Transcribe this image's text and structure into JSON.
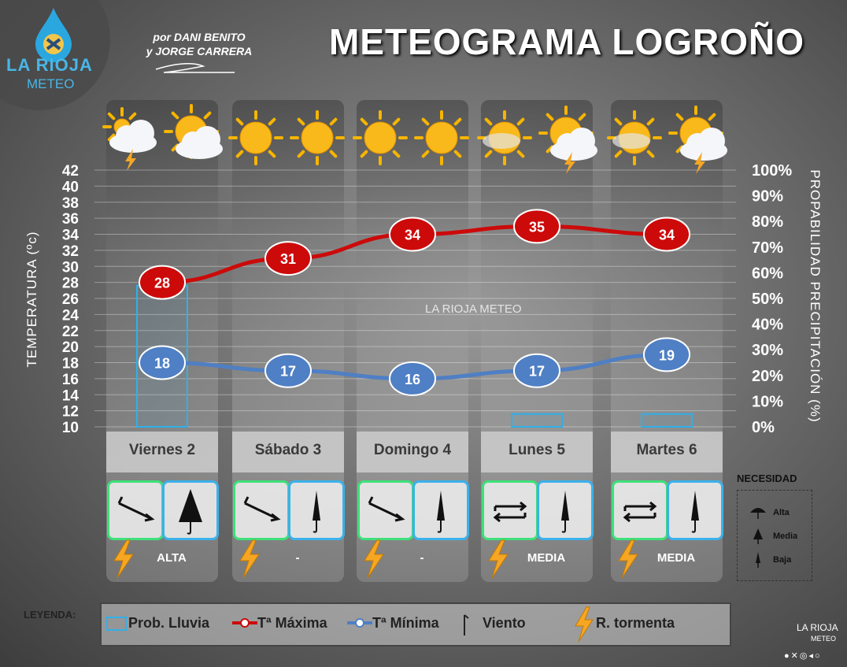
{
  "header": {
    "logo_text": "LA RIOJA",
    "logo_sub": "METEO",
    "authors_line1": "por DANI BENITO",
    "authors_line2": "y JORGE CARRERA",
    "title": "METEOGRAMA LOGROÑO"
  },
  "watermark": "LA RIOJA METEO",
  "chart_data": {
    "type": "line",
    "title": "METEOGRAMA LOGROÑO",
    "categories": [
      "Viernes 2",
      "Sábado 3",
      "Domingo 4",
      "Lunes 5",
      "Martes 6"
    ],
    "ylabel": "TEMPERATURA (ºc)",
    "ylim": [
      10,
      42
    ],
    "yticks": [
      10,
      12,
      14,
      16,
      18,
      20,
      22,
      24,
      26,
      28,
      30,
      32,
      34,
      36,
      38,
      40,
      42
    ],
    "y2label": "PROPABILIDAD PRECIPITACIÓN (%)",
    "y2lim": [
      0,
      100
    ],
    "y2ticks": [
      "0%",
      "10%",
      "20%",
      "30%",
      "40%",
      "50%",
      "60%",
      "70%",
      "80%",
      "90%",
      "100%"
    ],
    "series": [
      {
        "name": "Tª Máxima",
        "values": [
          28,
          31,
          34,
          35,
          34
        ],
        "color": "#cc0a0a"
      },
      {
        "name": "Tª Mínima",
        "values": [
          18,
          17,
          16,
          17,
          19
        ],
        "color": "#4f7fc4"
      },
      {
        "name": "Prob. Lluvia",
        "type": "bar",
        "values": [
          55,
          0,
          0,
          5,
          5
        ],
        "color": "#2fb0ea"
      }
    ],
    "weather_icons": [
      [
        "cloud-sun-storm-icon",
        "sun-cloud-icon"
      ],
      [
        "sun-icon",
        "sun-icon"
      ],
      [
        "sun-icon",
        "sun-icon"
      ],
      [
        "sun-haze-icon",
        "sun-cloud-storm-icon"
      ],
      [
        "sun-haze-icon",
        "sun-cloud-storm-icon"
      ]
    ],
    "grid": true
  },
  "days": [
    {
      "need": "ALTA",
      "wind_icon": "wind-arrow-icon",
      "umbrella_icon": "umbrella-open-icon"
    },
    {
      "need": "-",
      "wind_icon": "wind-arrow-icon",
      "umbrella_icon": "umbrella-closed-icon"
    },
    {
      "need": "-",
      "wind_icon": "wind-arrow-icon",
      "umbrella_icon": "umbrella-closed-icon"
    },
    {
      "need": "MEDIA",
      "wind_icon": "wind-variable-icon",
      "umbrella_icon": "umbrella-closed-icon"
    },
    {
      "need": "MEDIA",
      "wind_icon": "wind-variable-icon",
      "umbrella_icon": "umbrella-closed-icon"
    }
  ],
  "necesidad": {
    "title": "NECESIDAD",
    "items": [
      "Alta",
      "Media",
      "Baja"
    ]
  },
  "legend": {
    "label": "LEYENDA:",
    "prob": "Prob. Lluvia",
    "tmax": "Tª Máxima",
    "tmin": "Tª Mínima",
    "viento": "Viento",
    "tormenta": "R. tormenta"
  },
  "brand": {
    "name": "LA RIOJA",
    "sub": "METEO"
  },
  "colors": {
    "accent": "#48b6e6",
    "max": "#cc0a0a",
    "min": "#4f7fc4",
    "rain": "#2fb0ea",
    "wind_border": "#3ee07a",
    "bolt": "#f5a623"
  }
}
